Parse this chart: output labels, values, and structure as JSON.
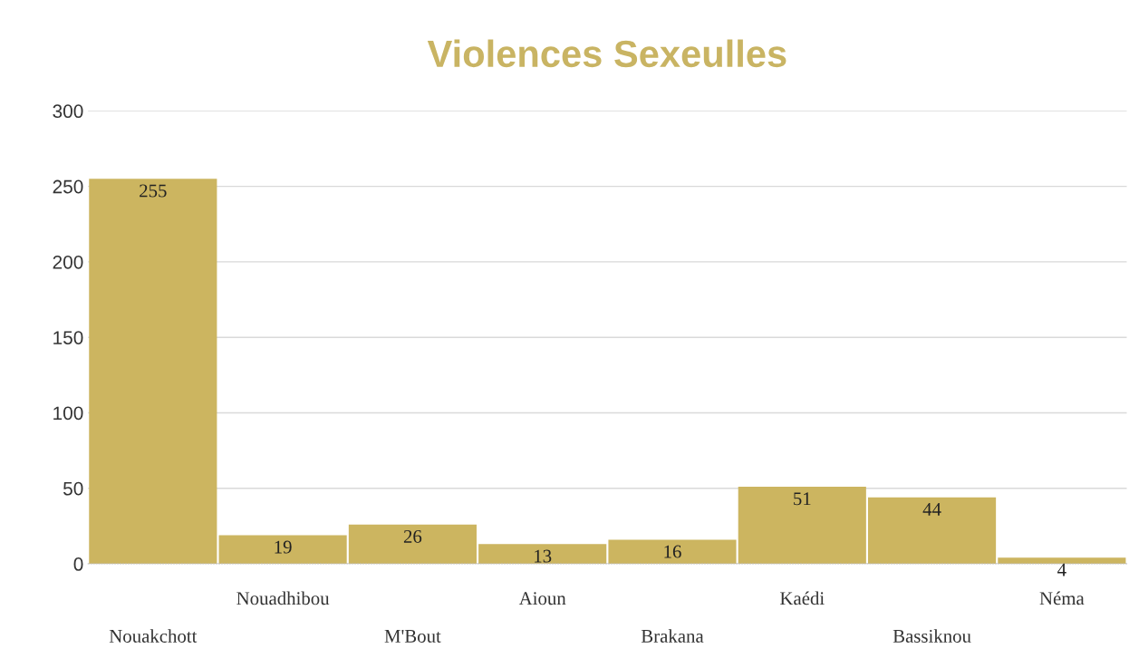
{
  "chart_data": {
    "type": "bar",
    "title": "Violences Sexeulles",
    "categories": [
      "Nouakchott",
      "Nouadhibou",
      "M'Bout",
      "Aioun",
      "Brakana",
      "Kaédi",
      "Bassiknou",
      "Néma"
    ],
    "values": [
      255,
      19,
      26,
      13,
      16,
      51,
      44,
      4
    ],
    "color": "#ccb560",
    "ylim": [
      0,
      300
    ],
    "yticks": [
      0,
      50,
      100,
      150,
      200,
      250,
      300
    ],
    "grid": "y",
    "data_labels": true
  }
}
